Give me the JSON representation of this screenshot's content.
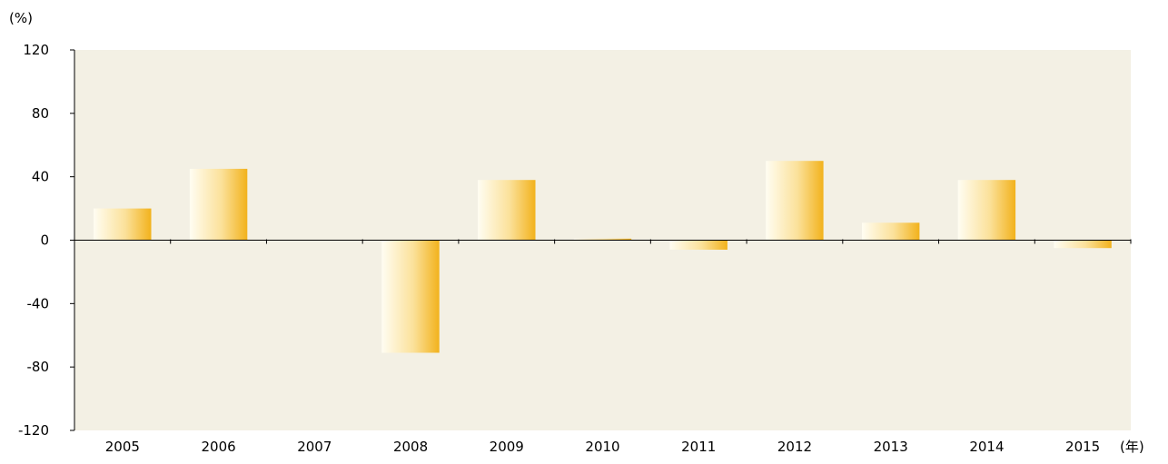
{
  "chart_data": {
    "type": "bar",
    "title": "",
    "y_unit_label": "(%)",
    "x_unit_label": "(年)",
    "categories": [
      "2005",
      "2006",
      "2007",
      "2008",
      "2009",
      "2010",
      "2011",
      "2012",
      "2013",
      "2014",
      "2015"
    ],
    "values": [
      20,
      45,
      0,
      -71,
      38,
      1,
      -6,
      50,
      11,
      38,
      -5
    ],
    "ylim": [
      -120,
      120
    ],
    "yticks": [
      "120",
      "80",
      "40",
      "0",
      "-40",
      "-80",
      "-120"
    ],
    "grid": false,
    "legend": "none",
    "colors": {
      "plot_background": "#f3f0e4",
      "bar_light": "#fffdf2",
      "bar_dark": "#f2b21c",
      "axis": "#000000"
    }
  }
}
